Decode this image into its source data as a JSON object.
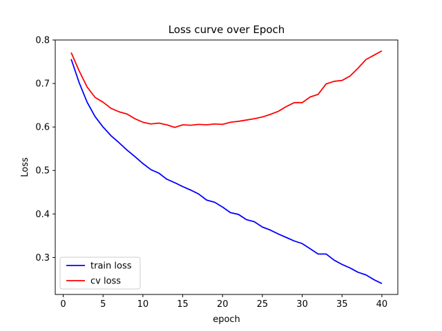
{
  "chart_data": {
    "type": "line",
    "title": "Loss curve over Epoch",
    "xlabel": "epoch",
    "ylabel": "Loss",
    "xlim": [
      -1,
      42
    ],
    "ylim": [
      0.215,
      0.8
    ],
    "x_ticks": [
      0,
      5,
      10,
      15,
      20,
      25,
      30,
      35,
      40
    ],
    "y_ticks": [
      0.3,
      0.4,
      0.5,
      0.6,
      0.7,
      0.8
    ],
    "x_tick_labels": [
      "0",
      "5",
      "10",
      "15",
      "20",
      "25",
      "30",
      "35",
      "40"
    ],
    "y_tick_labels": [
      "0.3",
      "0.4",
      "0.5",
      "0.6",
      "0.7",
      "0.8"
    ],
    "grid": false,
    "legend_position": "lower-left",
    "x": [
      1,
      2,
      3,
      4,
      5,
      6,
      7,
      8,
      9,
      10,
      11,
      12,
      13,
      14,
      15,
      16,
      17,
      18,
      19,
      20,
      21,
      22,
      23,
      24,
      25,
      26,
      27,
      28,
      29,
      30,
      31,
      32,
      33,
      34,
      35,
      36,
      37,
      38,
      39,
      40
    ],
    "series": [
      {
        "name": "train loss",
        "color": "#0000ff",
        "values": [
          0.756,
          0.702,
          0.657,
          0.624,
          0.6,
          0.58,
          0.564,
          0.547,
          0.532,
          0.516,
          0.502,
          0.494,
          0.48,
          0.472,
          0.463,
          0.455,
          0.446,
          0.432,
          0.427,
          0.416,
          0.403,
          0.399,
          0.387,
          0.382,
          0.37,
          0.363,
          0.354,
          0.346,
          0.338,
          0.332,
          0.32,
          0.308,
          0.308,
          0.294,
          0.284,
          0.276,
          0.266,
          0.26,
          0.249,
          0.24
        ]
      },
      {
        "name": "cv loss",
        "color": "#ff0000",
        "values": [
          0.771,
          0.729,
          0.692,
          0.668,
          0.657,
          0.643,
          0.635,
          0.63,
          0.619,
          0.611,
          0.607,
          0.609,
          0.605,
          0.599,
          0.605,
          0.604,
          0.606,
          0.605,
          0.607,
          0.606,
          0.611,
          0.613,
          0.616,
          0.619,
          0.623,
          0.629,
          0.636,
          0.647,
          0.656,
          0.656,
          0.669,
          0.675,
          0.699,
          0.705,
          0.707,
          0.717,
          0.735,
          0.755,
          0.765,
          0.775
        ]
      }
    ]
  }
}
